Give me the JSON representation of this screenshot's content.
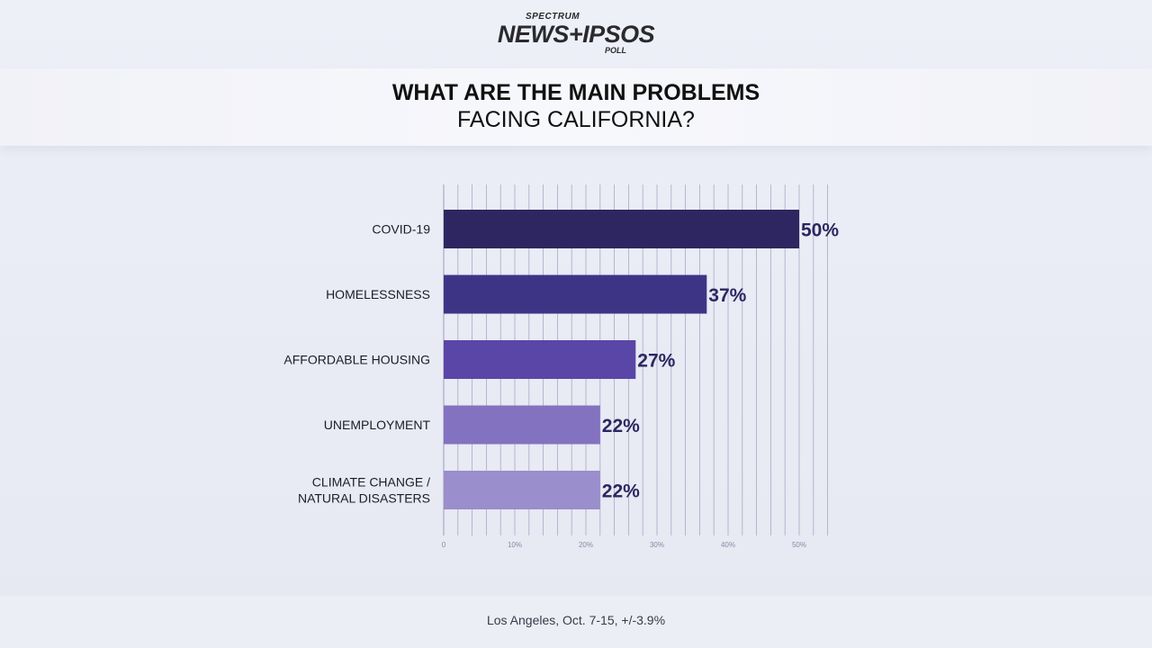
{
  "logo": {
    "top": "SPECTRUM",
    "main": "NEWS+IPSOS",
    "sub": "POLL"
  },
  "title": {
    "line1": "WHAT ARE THE MAIN PROBLEMS",
    "line2": "FACING CALIFORNIA?"
  },
  "footer": "Los Angeles, Oct. 7-15, +/-3.9%",
  "chart_data": {
    "type": "bar",
    "orientation": "horizontal",
    "title": "WHAT ARE THE MAIN PROBLEMS FACING CALIFORNIA?",
    "categories": [
      [
        "COVID-19"
      ],
      [
        "HOMELESSNESS"
      ],
      [
        "AFFORDABLE HOUSING"
      ],
      [
        "UNEMPLOYMENT"
      ],
      [
        "CLIMATE CHANGE /",
        "NATURAL DISASTERS"
      ]
    ],
    "values": [
      50,
      37,
      27,
      22,
      22
    ],
    "value_labels": [
      "50%",
      "37%",
      "27%",
      "22%",
      "22%"
    ],
    "bar_colors": [
      "#2e2660",
      "#3e3486",
      "#5946a6",
      "#8372c0",
      "#9b8ecc"
    ],
    "xlim": [
      0,
      54
    ],
    "x_ticks": [
      0,
      10,
      20,
      30,
      40,
      50
    ],
    "x_tick_labels": [
      "0",
      "10%",
      "20%",
      "30%",
      "40%",
      "50%"
    ],
    "grid": true,
    "label_color": "#2e2660"
  }
}
